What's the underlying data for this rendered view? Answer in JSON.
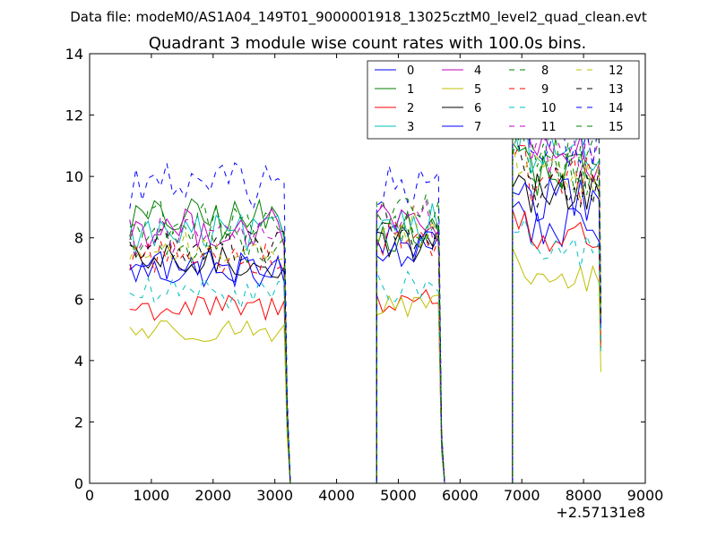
{
  "chart_data": {
    "type": "line",
    "suptitle": "Data file: modeM0/AS1A04_149T01_9000001918_13025cztM0_level2_quad_clean.evt",
    "title": "Quadrant 3 module wise count rates with 100.0s bins.",
    "xlabel": "",
    "ylabel": "",
    "x_offset_label": "+2.57131e8",
    "xlim": [
      0,
      9000
    ],
    "ylim": [
      0,
      14
    ],
    "x_ticks": [
      0,
      1000,
      2000,
      3000,
      4000,
      5000,
      6000,
      7000,
      8000,
      9000
    ],
    "y_ticks": [
      0,
      2,
      4,
      6,
      8,
      10,
      12,
      14
    ],
    "x_tick_labels": [
      "0",
      "1000",
      "2000",
      "3000",
      "4000",
      "5000",
      "6000",
      "7000",
      "8000",
      "9000"
    ],
    "y_tick_labels": [
      "0",
      "2",
      "4",
      "6",
      "8",
      "10",
      "12",
      "14"
    ],
    "grid": false,
    "legend_position": "top-right",
    "legend_columns": 4,
    "segments": [
      {
        "x_start": 650,
        "x_end": 3150
      },
      {
        "x_start": 4650,
        "x_end": 5650
      },
      {
        "x_start": 6850,
        "x_end": 8250
      }
    ],
    "zero_gaps": [
      [
        3250,
        4650
      ],
      [
        5750,
        6850
      ]
    ],
    "series": [
      {
        "name": "0",
        "color": "#0000ff",
        "dash": "solid",
        "levels": [
          6.9,
          7.9,
          8.3
        ]
      },
      {
        "name": "1",
        "color": "#008000",
        "dash": "solid",
        "levels": [
          8.6,
          8.2,
          10.1
        ]
      },
      {
        "name": "2",
        "color": "#ff0000",
        "dash": "solid",
        "levels": [
          5.7,
          6.0,
          8.0
        ]
      },
      {
        "name": "3",
        "color": "#00bfbf",
        "dash": "solid",
        "levels": [
          8.1,
          8.6,
          10.8
        ]
      },
      {
        "name": "4",
        "color": "#bf00bf",
        "dash": "solid",
        "levels": [
          8.3,
          8.5,
          10.6
        ]
      },
      {
        "name": "5",
        "color": "#bfbf00",
        "dash": "solid",
        "levels": [
          5.0,
          5.7,
          6.6
        ]
      },
      {
        "name": "6",
        "color": "#000000",
        "dash": "solid",
        "levels": [
          7.2,
          7.8,
          9.5
        ]
      },
      {
        "name": "7",
        "color": "#0000ff",
        "dash": "solid",
        "levels": [
          7.1,
          7.6,
          9.2
        ]
      },
      {
        "name": "8",
        "color": "#008000",
        "dash": "dashed",
        "levels": [
          7.8,
          8.3,
          10.2
        ]
      },
      {
        "name": "9",
        "color": "#ff0000",
        "dash": "dashed",
        "levels": [
          7.4,
          8.0,
          9.9
        ]
      },
      {
        "name": "10",
        "color": "#00bfbf",
        "dash": "dashed",
        "levels": [
          6.2,
          6.4,
          7.6
        ]
      },
      {
        "name": "11",
        "color": "#bf00bf",
        "dash": "dashed",
        "levels": [
          8.1,
          8.6,
          10.8
        ]
      },
      {
        "name": "12",
        "color": "#bfbf00",
        "dash": "dashed",
        "levels": [
          7.6,
          8.4,
          10.0
        ]
      },
      {
        "name": "13",
        "color": "#000000",
        "dash": "dashed",
        "levels": [
          7.7,
          8.1,
          9.7
        ]
      },
      {
        "name": "14",
        "color": "#0000ff",
        "dash": "dashed",
        "levels": [
          9.7,
          9.6,
          11.2
        ]
      },
      {
        "name": "15",
        "color": "#008000",
        "dash": "dashed",
        "levels": [
          8.5,
          8.9,
          10.5
        ]
      }
    ]
  }
}
